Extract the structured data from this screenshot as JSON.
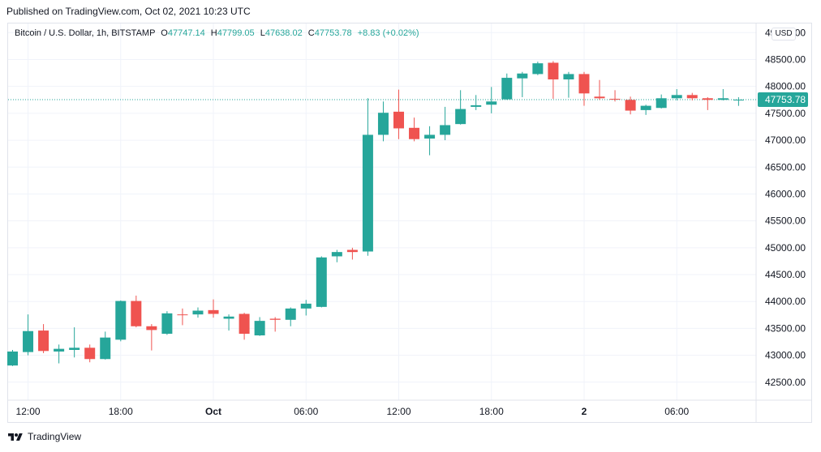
{
  "header": {
    "published_text": "Published on TradingView.com, Oct 02, 2021 10:23 UTC"
  },
  "legend": {
    "symbol": "Bitcoin / U.S. Dollar, 1h, BITSTAMP",
    "open_label": "O",
    "open_value": "47747.14",
    "high_label": "H",
    "high_value": "47799.05",
    "low_label": "L",
    "low_value": "47638.02",
    "close_label": "C",
    "close_value": "47753.78",
    "change": "+8.83 (+0.02%)"
  },
  "price_axis": {
    "currency": "USD",
    "labels": [
      "49000.00",
      "48500.00",
      "48000.00",
      "47500.00",
      "47000.00",
      "46500.00",
      "46000.00",
      "45500.00",
      "45000.00",
      "44500.00",
      "44000.00",
      "43500.00",
      "43000.00",
      "42500.00"
    ]
  },
  "last_price_tag": "47753.78",
  "time_axis": {
    "labels": [
      "12:00",
      "18:00",
      "Oct",
      "06:00",
      "12:00",
      "18:00",
      "2",
      "06:00"
    ]
  },
  "footer": {
    "brand": "TradingView"
  },
  "colors": {
    "up": "#26a69a",
    "down": "#ef5350",
    "grid": "#f0f3fa",
    "axis_text": "#131722",
    "last_price_line": "#26a69a"
  },
  "chart_data": {
    "type": "candlestick",
    "title": "Bitcoin / U.S. Dollar, 1h, BITSTAMP",
    "ylim": [
      42300,
      49100
    ],
    "y_ticks": [
      42500,
      43000,
      43500,
      44000,
      44500,
      45000,
      45500,
      46000,
      46500,
      47000,
      47500,
      48000,
      48500,
      49000
    ],
    "x_ticks": [
      {
        "index": 1,
        "label": "12:00"
      },
      {
        "index": 7,
        "label": "18:00"
      },
      {
        "index": 13,
        "label": "Oct"
      },
      {
        "index": 19,
        "label": "06:00"
      },
      {
        "index": 25,
        "label": "12:00"
      },
      {
        "index": 31,
        "label": "18:00"
      },
      {
        "index": 37,
        "label": "2"
      },
      {
        "index": 43,
        "label": "06:00"
      }
    ],
    "last_close": 47753.78,
    "grid": true,
    "candles": [
      {
        "o": 42810,
        "h": 43100,
        "l": 42800,
        "c": 43070
      },
      {
        "o": 43060,
        "h": 43760,
        "l": 43000,
        "c": 43450
      },
      {
        "o": 43460,
        "h": 43580,
        "l": 43040,
        "c": 43080
      },
      {
        "o": 43070,
        "h": 43200,
        "l": 42850,
        "c": 43120
      },
      {
        "o": 43100,
        "h": 43520,
        "l": 42960,
        "c": 43140
      },
      {
        "o": 43140,
        "h": 43200,
        "l": 42870,
        "c": 42930
      },
      {
        "o": 42930,
        "h": 43440,
        "l": 42920,
        "c": 43330
      },
      {
        "o": 43290,
        "h": 44020,
        "l": 43260,
        "c": 44010
      },
      {
        "o": 44010,
        "h": 44110,
        "l": 43520,
        "c": 43540
      },
      {
        "o": 43540,
        "h": 43580,
        "l": 43090,
        "c": 43470
      },
      {
        "o": 43400,
        "h": 43820,
        "l": 43380,
        "c": 43780
      },
      {
        "o": 43760,
        "h": 43870,
        "l": 43560,
        "c": 43750
      },
      {
        "o": 43760,
        "h": 43890,
        "l": 43700,
        "c": 43830
      },
      {
        "o": 43840,
        "h": 44040,
        "l": 43700,
        "c": 43770
      },
      {
        "o": 43680,
        "h": 43760,
        "l": 43460,
        "c": 43720
      },
      {
        "o": 43770,
        "h": 43790,
        "l": 43290,
        "c": 43400
      },
      {
        "o": 43370,
        "h": 43710,
        "l": 43360,
        "c": 43640
      },
      {
        "o": 43680,
        "h": 43710,
        "l": 43440,
        "c": 43660
      },
      {
        "o": 43660,
        "h": 43890,
        "l": 43540,
        "c": 43870
      },
      {
        "o": 43870,
        "h": 44030,
        "l": 43740,
        "c": 43960
      },
      {
        "o": 43900,
        "h": 44840,
        "l": 43890,
        "c": 44820
      },
      {
        "o": 44840,
        "h": 44960,
        "l": 44730,
        "c": 44920
      },
      {
        "o": 44960,
        "h": 45000,
        "l": 44780,
        "c": 44920
      },
      {
        "o": 44930,
        "h": 47780,
        "l": 44850,
        "c": 47100
      },
      {
        "o": 47100,
        "h": 47720,
        "l": 46980,
        "c": 47510
      },
      {
        "o": 47530,
        "h": 47940,
        "l": 47020,
        "c": 47220
      },
      {
        "o": 47230,
        "h": 47420,
        "l": 46980,
        "c": 47020
      },
      {
        "o": 47030,
        "h": 47260,
        "l": 46720,
        "c": 47100
      },
      {
        "o": 47100,
        "h": 47620,
        "l": 47000,
        "c": 47280
      },
      {
        "o": 47300,
        "h": 47930,
        "l": 47290,
        "c": 47580
      },
      {
        "o": 47620,
        "h": 47840,
        "l": 47560,
        "c": 47650
      },
      {
        "o": 47660,
        "h": 47990,
        "l": 47500,
        "c": 47720
      },
      {
        "o": 47760,
        "h": 48240,
        "l": 47750,
        "c": 48160
      },
      {
        "o": 48150,
        "h": 48270,
        "l": 47800,
        "c": 48240
      },
      {
        "o": 48230,
        "h": 48460,
        "l": 48210,
        "c": 48430
      },
      {
        "o": 48440,
        "h": 48470,
        "l": 47770,
        "c": 48130
      },
      {
        "o": 48130,
        "h": 48270,
        "l": 47790,
        "c": 48230
      },
      {
        "o": 48230,
        "h": 48270,
        "l": 47640,
        "c": 47870
      },
      {
        "o": 47810,
        "h": 48120,
        "l": 47750,
        "c": 47780
      },
      {
        "o": 47770,
        "h": 47930,
        "l": 47720,
        "c": 47760
      },
      {
        "o": 47750,
        "h": 47810,
        "l": 47480,
        "c": 47550
      },
      {
        "o": 47560,
        "h": 47660,
        "l": 47470,
        "c": 47640
      },
      {
        "o": 47600,
        "h": 47850,
        "l": 47590,
        "c": 47780
      },
      {
        "o": 47780,
        "h": 47950,
        "l": 47740,
        "c": 47840
      },
      {
        "o": 47840,
        "h": 47880,
        "l": 47740,
        "c": 47780
      },
      {
        "o": 47780,
        "h": 47800,
        "l": 47560,
        "c": 47750
      },
      {
        "o": 47750,
        "h": 47950,
        "l": 47740,
        "c": 47780
      },
      {
        "o": 47747.14,
        "h": 47799.05,
        "l": 47638.02,
        "c": 47753.78
      }
    ]
  }
}
